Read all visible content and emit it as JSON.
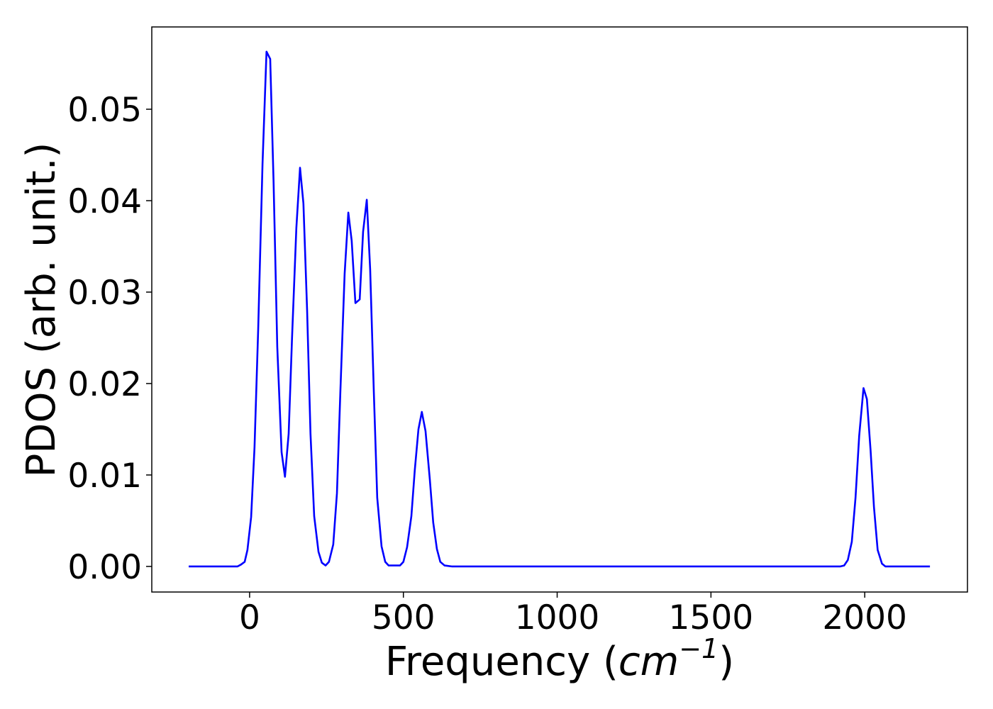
{
  "chart_data": {
    "type": "line",
    "xlabel_parts": [
      "Frequency (",
      "cm",
      "−1",
      ")"
    ],
    "ylabel": "PDOS (arb. unit.)",
    "xlim": [
      -318,
      2334
    ],
    "ylim": [
      -0.0028,
      0.059
    ],
    "xticks": [
      0,
      500,
      1000,
      1500,
      2000
    ],
    "yticks": [
      {
        "value": 0,
        "label": "0.00"
      },
      {
        "value": 0.01,
        "label": "0.01"
      },
      {
        "value": 0.02,
        "label": "0.02"
      },
      {
        "value": 0.03,
        "label": "0.03"
      },
      {
        "value": 0.04,
        "label": "0.04"
      },
      {
        "value": 0.05,
        "label": "0.05"
      }
    ],
    "grid": false,
    "series": [
      {
        "color": "#0000ff",
        "x": [
          -198,
          -39,
          -28,
          -16,
          -7,
          5,
          16,
          28,
          42,
          55,
          67,
          78,
          90,
          104,
          115,
          127,
          138,
          152,
          164,
          175,
          187,
          198,
          210,
          224,
          235,
          247,
          258,
          272,
          284,
          295,
          309,
          321,
          332,
          344,
          358,
          369,
          381,
          392,
          404,
          415,
          429,
          441,
          452,
          489,
          500,
          512,
          526,
          537,
          549,
          560,
          572,
          586,
          597,
          609,
          620,
          634,
          657,
          1921,
          1933,
          1945,
          1958,
          1970,
          1982,
          1996,
          2007,
          2019,
          2030,
          2042,
          2056,
          2067,
          2212
        ],
        "values": [
          0,
          0,
          0.0002,
          0.0005,
          0.0018,
          0.0054,
          0.013,
          0.026,
          0.044,
          0.0563,
          0.0555,
          0.042,
          0.024,
          0.0125,
          0.0098,
          0.0145,
          0.025,
          0.037,
          0.0436,
          0.0397,
          0.028,
          0.0145,
          0.0055,
          0.0016,
          0.0004,
          0.0001,
          0.0005,
          0.0024,
          0.008,
          0.019,
          0.032,
          0.0387,
          0.0356,
          0.0288,
          0.0292,
          0.0366,
          0.0401,
          0.0325,
          0.019,
          0.0075,
          0.0022,
          0.0005,
          0.0001,
          0.0001,
          0.0005,
          0.0021,
          0.0055,
          0.0105,
          0.015,
          0.0169,
          0.0148,
          0.0095,
          0.0048,
          0.0019,
          0.0005,
          0.0001,
          0,
          0,
          0.0001,
          0.0007,
          0.0027,
          0.0075,
          0.0143,
          0.0195,
          0.0183,
          0.0127,
          0.0065,
          0.0018,
          0.0003,
          0,
          0
        ]
      }
    ]
  }
}
